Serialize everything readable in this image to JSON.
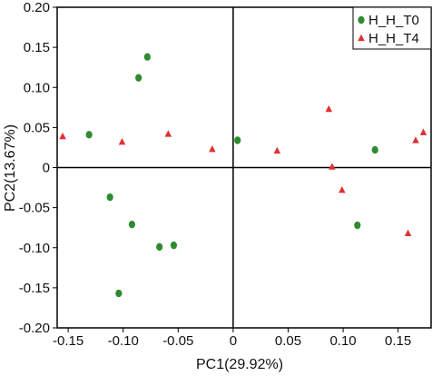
{
  "chart_data": {
    "type": "scatter",
    "xlabel": "PC1(29.92%)",
    "ylabel": "PC2(13.67%)",
    "xlim": [
      -0.16,
      0.18
    ],
    "ylim": [
      -0.2,
      0.2
    ],
    "x_ticks": [
      -0.15,
      -0.1,
      -0.05,
      0,
      0.05,
      0.1,
      0.15
    ],
    "x_tick_labels": [
      "-0.15",
      "-0.10",
      "-0.05",
      "0",
      "0.05",
      "0.10",
      "0.15"
    ],
    "y_ticks": [
      0.2,
      0.15,
      0.1,
      0.05,
      0,
      -0.05,
      -0.1,
      -0.15,
      -0.2
    ],
    "y_tick_labels": [
      "0.20",
      "0.15",
      "0.10",
      "0.05",
      "0",
      "-0.05",
      "-0.10",
      "-0.15",
      "-0.20"
    ],
    "reference_lines": {
      "x": 0,
      "y": 0
    },
    "legend_position": "top-right",
    "grid": false,
    "series": [
      {
        "name": "H_H_T0",
        "marker": "circle",
        "color": "#2e8b2e",
        "points": [
          {
            "x": -0.078,
            "y": 0.138
          },
          {
            "x": -0.086,
            "y": 0.112
          },
          {
            "x": -0.131,
            "y": 0.041
          },
          {
            "x": 0.004,
            "y": 0.034
          },
          {
            "x": 0.129,
            "y": 0.022
          },
          {
            "x": -0.112,
            "y": -0.037
          },
          {
            "x": -0.092,
            "y": -0.071
          },
          {
            "x": 0.113,
            "y": -0.072
          },
          {
            "x": -0.067,
            "y": -0.099
          },
          {
            "x": -0.054,
            "y": -0.097
          },
          {
            "x": -0.104,
            "y": -0.157
          }
        ]
      },
      {
        "name": "H_H_T4",
        "marker": "triangle",
        "color": "#e03030",
        "points": [
          {
            "x": -0.155,
            "y": 0.039
          },
          {
            "x": -0.101,
            "y": 0.032
          },
          {
            "x": -0.059,
            "y": 0.042
          },
          {
            "x": -0.019,
            "y": 0.023
          },
          {
            "x": 0.04,
            "y": 0.021
          },
          {
            "x": 0.087,
            "y": 0.073
          },
          {
            "x": 0.09,
            "y": 0.001
          },
          {
            "x": 0.099,
            "y": -0.028
          },
          {
            "x": 0.159,
            "y": -0.082
          },
          {
            "x": 0.166,
            "y": 0.034
          },
          {
            "x": 0.173,
            "y": 0.044
          }
        ]
      }
    ]
  }
}
